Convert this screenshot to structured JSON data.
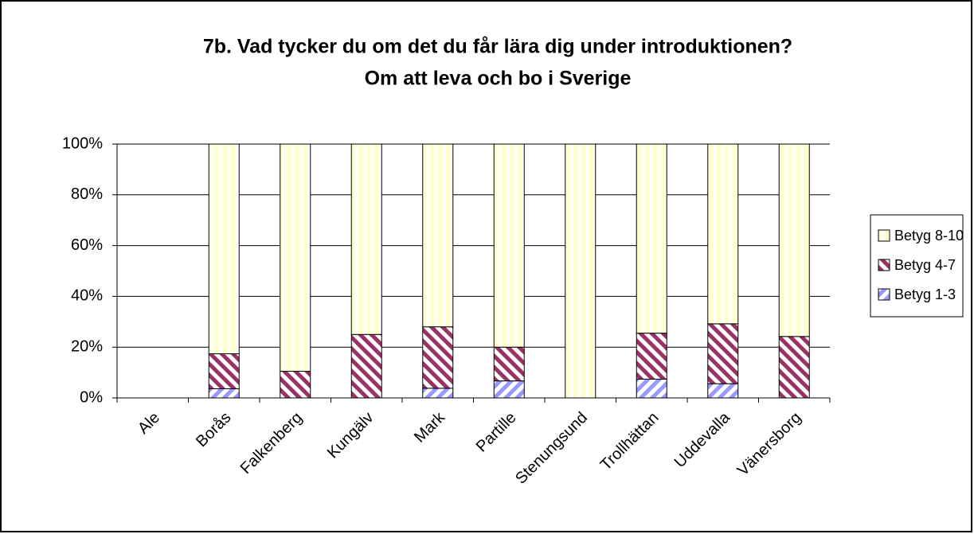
{
  "chart_data": {
    "type": "stacked_bar_100",
    "title": "7b. Vad tycker du om det du får lära dig under introduktionen?",
    "subtitle": "Om att leva och bo i Sverige",
    "categories": [
      "Ale",
      "Borås",
      "Falkenberg",
      "Kungälv",
      "Mark",
      "Partille",
      "Stenungsund",
      "Trollhättan",
      "Uddevalla",
      "Vänersborg"
    ],
    "series": [
      {
        "name": "Betyg 1-3",
        "color": "#9999ff",
        "values": [
          0,
          3.6,
          0,
          0,
          3.8,
          6.7,
          0,
          7.4,
          5.6,
          0
        ]
      },
      {
        "name": "Betyg 4-7",
        "color": "#993366",
        "values": [
          0,
          13.8,
          10.5,
          25,
          24.2,
          13.3,
          0,
          18.1,
          23.6,
          24.2
        ]
      },
      {
        "name": "Betyg 8-10",
        "color": "#ffffcc",
        "values": [
          0,
          82.6,
          89.5,
          75,
          72,
          80,
          100,
          74.5,
          70.8,
          75.8
        ]
      }
    ],
    "ylim": [
      0,
      100
    ],
    "yticks": [
      {
        "value": 0,
        "label": "0%"
      },
      {
        "value": 20,
        "label": "20%"
      },
      {
        "value": 40,
        "label": "40%"
      },
      {
        "value": 60,
        "label": "60%"
      },
      {
        "value": 80,
        "label": "80%"
      },
      {
        "value": 100,
        "label": "100%"
      }
    ],
    "grid": true,
    "legend": "right"
  }
}
